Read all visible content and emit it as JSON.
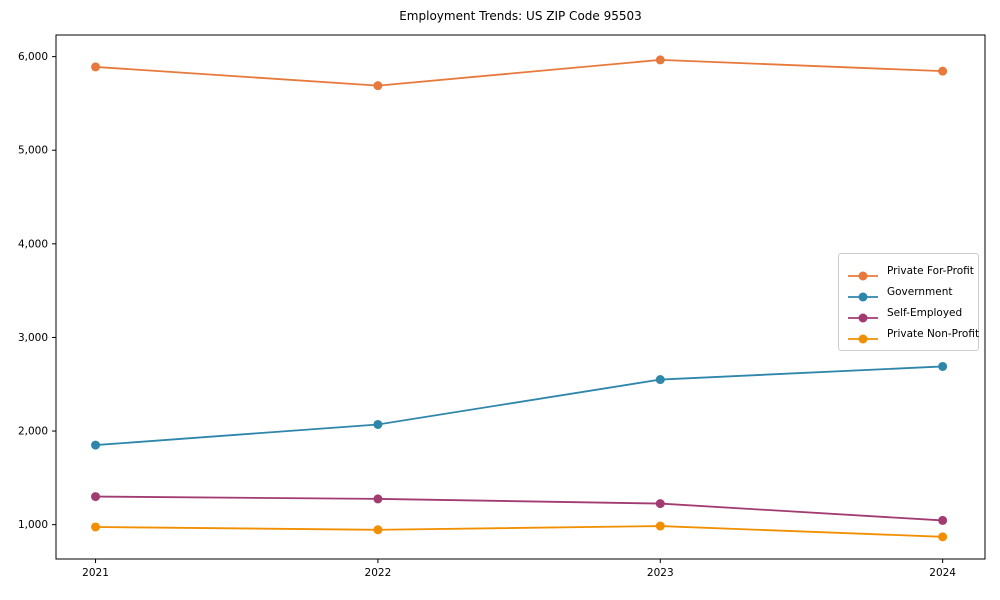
{
  "figure": {
    "background": "#ffffff",
    "axis_color": "#000000",
    "text_color": "#000000",
    "legend_border_color": "#cccccc"
  },
  "chart_data": {
    "type": "line",
    "title": "Employment Trends: US ZIP Code 95503",
    "xlabel": "",
    "ylabel": "",
    "x": [
      2021,
      2022,
      2023,
      2024
    ],
    "x_tick_labels": [
      "2021",
      "2022",
      "2023",
      "2024"
    ],
    "y_ticks": [
      1000,
      2000,
      3000,
      4000,
      5000,
      6000
    ],
    "y_tick_labels": [
      "1,000",
      "2,000",
      "3,000",
      "4,000",
      "5,000",
      "6,000"
    ],
    "xlim": [
      2020.86,
      2024.15
    ],
    "ylim": [
      633,
      6231
    ],
    "grid": false,
    "legend_position": "center-right",
    "marker": "circle",
    "series": [
      {
        "name": "Private For-Profit",
        "color": "#e8793c",
        "values": [
          5890,
          5690,
          5965,
          5845
        ]
      },
      {
        "name": "Government",
        "color": "#2e86ab",
        "values": [
          1850,
          2070,
          2550,
          2690
        ]
      },
      {
        "name": "Self-Employed",
        "color": "#a23b72",
        "values": [
          1300,
          1275,
          1225,
          1045
        ]
      },
      {
        "name": "Private Non-Profit",
        "color": "#f18f01",
        "values": [
          975,
          945,
          985,
          870
        ]
      }
    ]
  }
}
